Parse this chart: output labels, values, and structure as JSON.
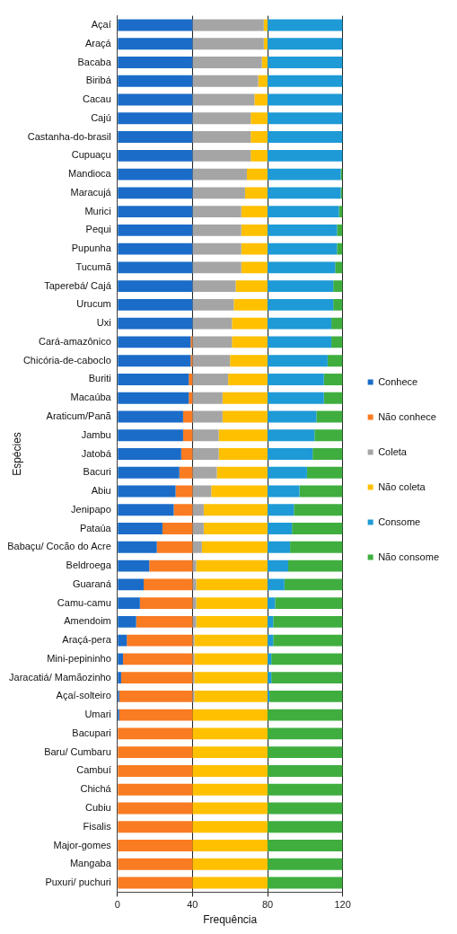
{
  "chart_data": {
    "type": "bar",
    "orientation": "horizontal",
    "stacked": true,
    "xlabel": "Frequência",
    "ylabel": "Espécies",
    "xlim": [
      0,
      120
    ],
    "xticks": [
      0,
      40,
      80,
      120
    ],
    "grid": "x",
    "legend": "right",
    "categories": [
      "Açaí",
      "Araçá",
      "Bacaba",
      "Biribá",
      "Cacau",
      "Cajú",
      "Castanha-do-brasil",
      "Cupuaçu",
      "Mandioca",
      "Maracujá",
      "Murici",
      "Pequi",
      "Pupunha",
      "Tucumã",
      "Taperebá/ Cajá",
      "Urucum",
      "Uxi",
      "Cará-amazônico",
      "Chicória-de-caboclo",
      "Buriti",
      "Macaúba",
      "Araticum/Panã",
      "Jambu",
      "Jatobá",
      "Bacuri",
      "Abiu",
      "Jenipapo",
      "Pataúa",
      "Babaçu/ Cocão do Acre",
      "Beldroega",
      "Guaraná",
      "Camu-camu",
      "Amendoim",
      "Araçá-pera",
      "Mini-pepininho",
      "Jaracatiá/ Mamãozinho",
      "Açaí-solteiro",
      "Umari",
      "Bacupari",
      "Baru/ Cumbaru",
      "Cambuí",
      "Chichá",
      "Cubiu",
      "Fisalis",
      "Major-gomes",
      "Mangaba",
      "Puxuri/ puchuri"
    ],
    "series": [
      {
        "name": "Conhece",
        "color": "#1a6cc8",
        "values": [
          40,
          40,
          40,
          40,
          40,
          40,
          40,
          40,
          40,
          40,
          40,
          40,
          40,
          40,
          40,
          40,
          40,
          39,
          39,
          38,
          38,
          35,
          35,
          34,
          33,
          31,
          30,
          24,
          21,
          17,
          14,
          12,
          10,
          5,
          3,
          2,
          1,
          1,
          0,
          0,
          0,
          0,
          0,
          0,
          0,
          0,
          0
        ]
      },
      {
        "name": "Não conhece",
        "color": "#f97b22",
        "values": [
          0,
          0,
          0,
          0,
          0,
          0,
          0,
          0,
          0,
          0,
          0,
          0,
          0,
          0,
          0,
          0,
          0,
          1,
          1,
          2,
          2,
          5,
          5,
          6,
          7,
          9,
          10,
          16,
          19,
          23,
          26,
          28,
          30,
          35,
          37,
          38,
          39,
          39,
          40,
          40,
          40,
          40,
          40,
          40,
          40,
          40,
          40
        ]
      },
      {
        "name": "Coleta",
        "color": "#a5a5a5",
        "values": [
          38,
          38,
          37,
          35,
          33,
          31,
          31,
          31,
          29,
          28,
          26,
          26,
          26,
          26,
          23,
          22,
          21,
          21,
          20,
          19,
          16,
          16,
          14,
          14,
          13,
          10,
          6,
          6,
          5,
          2,
          2,
          2,
          2,
          1,
          1,
          1,
          1,
          0,
          0,
          0,
          0,
          0,
          0,
          0,
          0,
          0,
          0
        ]
      },
      {
        "name": "Não coleta",
        "color": "#ffc000",
        "values": [
          2,
          2,
          3,
          5,
          7,
          9,
          9,
          9,
          11,
          12,
          14,
          14,
          14,
          14,
          17,
          18,
          19,
          19,
          20,
          21,
          24,
          24,
          26,
          26,
          27,
          30,
          34,
          34,
          35,
          38,
          38,
          38,
          38,
          39,
          39,
          39,
          39,
          40,
          40,
          40,
          40,
          40,
          40,
          40,
          40,
          40,
          40
        ]
      },
      {
        "name": "Consome",
        "color": "#1e9ad6",
        "values": [
          40,
          40,
          40,
          40,
          40,
          40,
          40,
          40,
          39,
          39,
          38,
          37,
          37,
          36,
          35,
          35,
          34,
          34,
          32,
          30,
          30,
          26,
          25,
          24,
          21,
          17,
          14,
          13,
          12,
          11,
          9,
          4,
          3,
          3,
          2,
          2,
          1,
          0,
          0,
          0,
          0,
          0,
          0,
          0,
          0,
          0,
          0
        ]
      },
      {
        "name": "Não consome",
        "color": "#3fae3f",
        "values": [
          0,
          0,
          0,
          0,
          0,
          0,
          0,
          0,
          1,
          1,
          2,
          3,
          3,
          4,
          5,
          5,
          6,
          6,
          8,
          10,
          10,
          14,
          15,
          16,
          19,
          23,
          26,
          27,
          28,
          29,
          31,
          36,
          37,
          37,
          38,
          38,
          39,
          40,
          40,
          40,
          40,
          40,
          40,
          40,
          40,
          40,
          40
        ]
      }
    ]
  }
}
